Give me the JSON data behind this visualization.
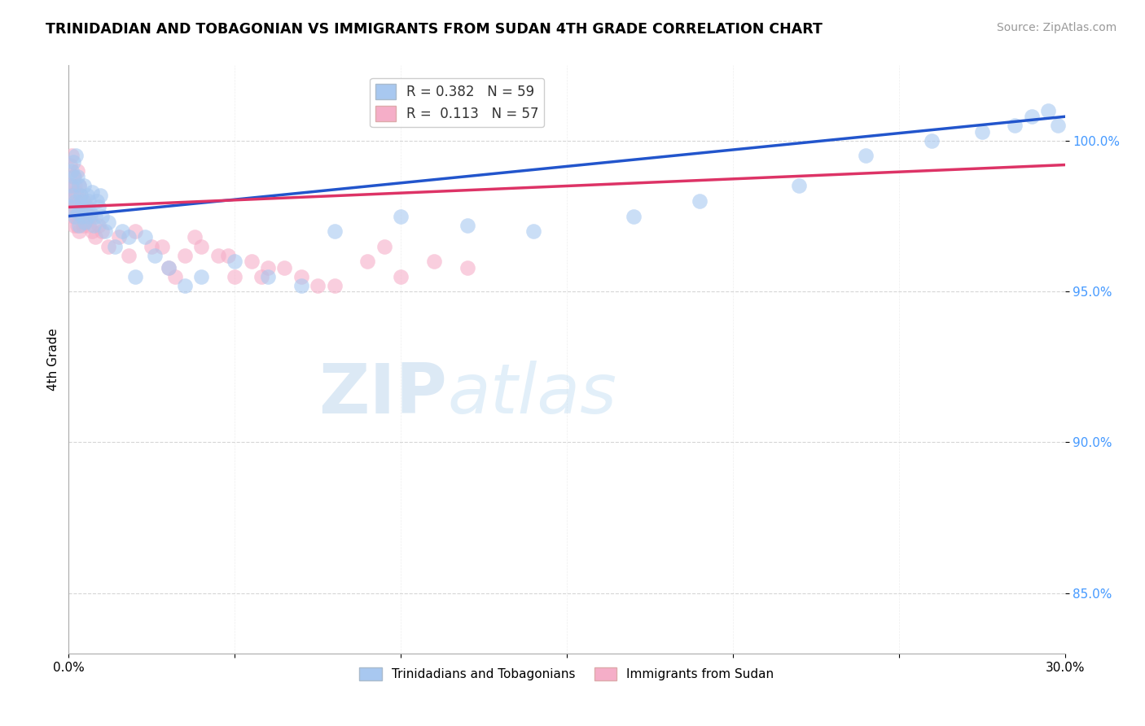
{
  "title": "TRINIDADIAN AND TOBAGONIAN VS IMMIGRANTS FROM SUDAN 4TH GRADE CORRELATION CHART",
  "source_text": "Source: ZipAtlas.com",
  "ylabel": "4th Grade",
  "xlim": [
    0.0,
    30.0
  ],
  "ylim": [
    83.0,
    102.5
  ],
  "yticks": [
    85.0,
    90.0,
    95.0,
    100.0
  ],
  "ytick_labels": [
    "85.0%",
    "90.0%",
    "95.0%",
    "100.0%"
  ],
  "blue_R": 0.382,
  "blue_N": 59,
  "pink_R": 0.113,
  "pink_N": 57,
  "blue_color": "#a8c8f0",
  "pink_color": "#f5aec8",
  "blue_line_color": "#2255cc",
  "pink_line_color": "#dd3366",
  "legend_label_blue": "Trinidadians and Tobagonians",
  "legend_label_pink": "Immigrants from Sudan",
  "watermark_zip": "ZIP",
  "watermark_atlas": "atlas",
  "blue_trend_x0": 0.0,
  "blue_trend_y0": 97.5,
  "blue_trend_x1": 30.0,
  "blue_trend_y1": 100.8,
  "pink_trend_x0": 0.0,
  "pink_trend_y0": 97.8,
  "pink_trend_x1": 30.0,
  "pink_trend_y1": 99.2,
  "blue_scatter_x": [
    0.05,
    0.08,
    0.1,
    0.12,
    0.15,
    0.17,
    0.18,
    0.2,
    0.22,
    0.25,
    0.28,
    0.3,
    0.32,
    0.35,
    0.38,
    0.4,
    0.42,
    0.45,
    0.48,
    0.5,
    0.55,
    0.58,
    0.6,
    0.65,
    0.7,
    0.75,
    0.8,
    0.85,
    0.9,
    0.95,
    1.0,
    1.1,
    1.2,
    1.4,
    1.6,
    1.8,
    2.0,
    2.3,
    2.6,
    3.0,
    3.5,
    4.0,
    5.0,
    6.0,
    7.0,
    8.0,
    10.0,
    12.0,
    14.0,
    17.0,
    19.0,
    22.0,
    24.0,
    26.0,
    27.5,
    28.5,
    29.0,
    29.5,
    29.8
  ],
  "blue_scatter_y": [
    97.8,
    98.5,
    99.0,
    98.2,
    99.3,
    98.8,
    97.5,
    99.5,
    98.0,
    98.8,
    97.6,
    98.5,
    97.2,
    98.2,
    97.8,
    98.0,
    97.5,
    98.5,
    97.3,
    97.8,
    98.2,
    97.5,
    98.0,
    97.6,
    98.3,
    97.2,
    97.5,
    98.0,
    97.8,
    98.2,
    97.5,
    97.0,
    97.3,
    96.5,
    97.0,
    96.8,
    95.5,
    96.8,
    96.2,
    95.8,
    95.2,
    95.5,
    96.0,
    95.5,
    95.2,
    97.0,
    97.5,
    97.2,
    97.0,
    97.5,
    98.0,
    98.5,
    99.5,
    100.0,
    100.3,
    100.5,
    100.8,
    101.0,
    100.5
  ],
  "pink_scatter_x": [
    0.03,
    0.05,
    0.07,
    0.08,
    0.1,
    0.12,
    0.14,
    0.15,
    0.17,
    0.18,
    0.2,
    0.22,
    0.24,
    0.25,
    0.27,
    0.3,
    0.32,
    0.35,
    0.38,
    0.4,
    0.43,
    0.45,
    0.48,
    0.5,
    0.55,
    0.6,
    0.65,
    0.7,
    0.8,
    0.9,
    1.0,
    1.2,
    1.5,
    1.8,
    2.0,
    2.5,
    3.0,
    3.5,
    4.0,
    5.0,
    5.5,
    6.0,
    7.0,
    8.0,
    9.0,
    10.0,
    11.0,
    12.0,
    3.2,
    4.5,
    6.5,
    2.8,
    7.5,
    9.5,
    5.8,
    3.8,
    4.8
  ],
  "pink_scatter_y": [
    98.0,
    99.2,
    98.5,
    97.8,
    99.5,
    98.2,
    97.5,
    98.8,
    97.2,
    98.5,
    97.8,
    98.3,
    97.5,
    99.0,
    97.2,
    98.5,
    97.0,
    98.2,
    97.5,
    97.8,
    97.2,
    98.0,
    97.3,
    97.6,
    97.8,
    97.2,
    97.5,
    97.0,
    96.8,
    97.2,
    97.0,
    96.5,
    96.8,
    96.2,
    97.0,
    96.5,
    95.8,
    96.2,
    96.5,
    95.5,
    96.0,
    95.8,
    95.5,
    95.2,
    96.0,
    95.5,
    96.0,
    95.8,
    95.5,
    96.2,
    95.8,
    96.5,
    95.2,
    96.5,
    95.5,
    96.8,
    96.2
  ]
}
